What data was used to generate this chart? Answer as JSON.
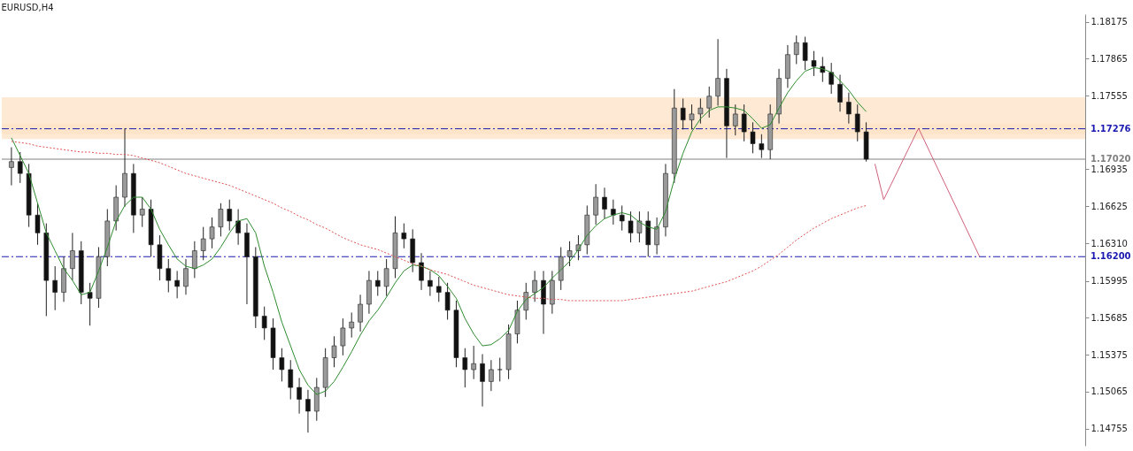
{
  "chart_data": {
    "type": "candlestick",
    "title": "EURUSD,H4",
    "tick_labels": "y",
    "grid": false,
    "categories": [
      null,
      null,
      null,
      null,
      null,
      null,
      null,
      null,
      null,
      null,
      null,
      null,
      null,
      null,
      null,
      null,
      null,
      null,
      null,
      null,
      null,
      null,
      null,
      null,
      null,
      null,
      null,
      null,
      null,
      null,
      null,
      null,
      null,
      null,
      null,
      null,
      null,
      null,
      null,
      null,
      null,
      null,
      null,
      null,
      null,
      null,
      null,
      null,
      null,
      null,
      null,
      null,
      null,
      null,
      null,
      null,
      null,
      null,
      null,
      null,
      null,
      null,
      null,
      null,
      null,
      null,
      null,
      null,
      null,
      null,
      null,
      null,
      null,
      null,
      null,
      null,
      null,
      null,
      null,
      null,
      null,
      null,
      null,
      null,
      null,
      null,
      null,
      null,
      null,
      null,
      null,
      null,
      null,
      null,
      null,
      null,
      null,
      null,
      null,
      null,
      null,
      null,
      null,
      null,
      null,
      null,
      null,
      null,
      null,
      null,
      null,
      null,
      null,
      null,
      null,
      null,
      null,
      null,
      null,
      null,
      null,
      null,
      null
    ],
    "ylim": [
      1.1461,
      1.1824
    ],
    "yticks": [
      1.18175,
      1.17865,
      1.17555,
      1.16935,
      1.16625,
      {
        "value": 1.1631,
        "label": "1.16310"
      },
      1.15995,
      1.15685,
      1.15375,
      1.15065,
      1.14755
    ],
    "ohlc": [
      [
        1.1695,
        1.1712,
        1.168,
        1.17
      ],
      [
        1.17,
        1.1708,
        1.1682,
        1.169
      ],
      [
        1.169,
        1.1698,
        1.1645,
        1.1655
      ],
      [
        1.1655,
        1.1665,
        1.163,
        1.164
      ],
      [
        1.164,
        1.1648,
        1.157,
        1.16
      ],
      [
        1.16,
        1.1612,
        1.1575,
        1.159
      ],
      [
        1.159,
        1.162,
        1.1582,
        1.161
      ],
      [
        1.161,
        1.164,
        1.16,
        1.1625
      ],
      [
        1.1625,
        1.1633,
        1.158,
        1.159
      ],
      [
        1.159,
        1.1598,
        1.1562,
        1.1585
      ],
      [
        1.1585,
        1.1628,
        1.1577,
        1.162
      ],
      [
        1.162,
        1.166,
        1.1612,
        1.165
      ],
      [
        1.165,
        1.168,
        1.1642,
        1.167
      ],
      [
        1.167,
        1.1728,
        1.1662,
        1.169
      ],
      [
        1.169,
        1.1698,
        1.164,
        1.1655
      ],
      [
        1.1655,
        1.167,
        1.1645,
        1.166
      ],
      [
        1.166,
        1.1668,
        1.162,
        1.163
      ],
      [
        1.163,
        1.1638,
        1.16,
        1.161
      ],
      [
        1.161,
        1.1618,
        1.159,
        1.16
      ],
      [
        1.16,
        1.1608,
        1.1585,
        1.1595
      ],
      [
        1.1595,
        1.1618,
        1.1588,
        1.161
      ],
      [
        1.161,
        1.1633,
        1.1602,
        1.1625
      ],
      [
        1.1625,
        1.1645,
        1.1617,
        1.1635
      ],
      [
        1.1635,
        1.1653,
        1.1627,
        1.1645
      ],
      [
        1.1645,
        1.1665,
        1.1637,
        1.166
      ],
      [
        1.166,
        1.1668,
        1.1642,
        1.165
      ],
      [
        1.165,
        1.166,
        1.163,
        1.164
      ],
      [
        1.164,
        1.1648,
        1.158,
        1.162
      ],
      [
        1.162,
        1.1628,
        1.156,
        1.157
      ],
      [
        1.157,
        1.1578,
        1.155,
        1.156
      ],
      [
        1.156,
        1.1568,
        1.1525,
        1.1535
      ],
      [
        1.1535,
        1.1543,
        1.1515,
        1.1525
      ],
      [
        1.1525,
        1.1533,
        1.15,
        1.151
      ],
      [
        1.151,
        1.1518,
        1.1488,
        1.15
      ],
      [
        1.15,
        1.1508,
        1.1472,
        1.149
      ],
      [
        1.149,
        1.1518,
        1.1482,
        1.151
      ],
      [
        1.151,
        1.1543,
        1.1502,
        1.1535
      ],
      [
        1.1535,
        1.1553,
        1.1527,
        1.1545
      ],
      [
        1.1545,
        1.1568,
        1.1537,
        1.156
      ],
      [
        1.156,
        1.1573,
        1.1552,
        1.1565
      ],
      [
        1.1565,
        1.1588,
        1.1557,
        1.158
      ],
      [
        1.158,
        1.1608,
        1.1572,
        1.16
      ],
      [
        1.16,
        1.1608,
        1.1587,
        1.1595
      ],
      [
        1.1595,
        1.1618,
        1.1587,
        1.161
      ],
      [
        1.161,
        1.1654,
        1.1602,
        1.164
      ],
      [
        1.164,
        1.1648,
        1.1627,
        1.1635
      ],
      [
        1.1635,
        1.1643,
        1.1607,
        1.1615
      ],
      [
        1.1615,
        1.1623,
        1.1592,
        1.16
      ],
      [
        1.16,
        1.1608,
        1.1587,
        1.1595
      ],
      [
        1.1595,
        1.1603,
        1.1582,
        1.159
      ],
      [
        1.159,
        1.1598,
        1.1567,
        1.1575
      ],
      [
        1.1575,
        1.1583,
        1.1527,
        1.1535
      ],
      [
        1.1535,
        1.1543,
        1.151,
        1.1525
      ],
      [
        1.1525,
        1.1545,
        1.1517,
        1.153
      ],
      [
        1.153,
        1.1538,
        1.1494,
        1.1515
      ],
      [
        1.1515,
        1.1533,
        1.1507,
        1.1525
      ],
      [
        1.1525,
        1.1535,
        1.1515,
        1.1525
      ],
      [
        1.1525,
        1.1563,
        1.1517,
        1.1555
      ],
      [
        1.1555,
        1.1583,
        1.1547,
        1.1575
      ],
      [
        1.1575,
        1.1598,
        1.1567,
        1.159
      ],
      [
        1.159,
        1.1608,
        1.1582,
        1.16
      ],
      [
        1.16,
        1.1608,
        1.1555,
        1.158
      ],
      [
        1.158,
        1.1608,
        1.1572,
        1.16
      ],
      [
        1.16,
        1.1628,
        1.1592,
        1.162
      ],
      [
        1.162,
        1.1633,
        1.1612,
        1.1625
      ],
      [
        1.1625,
        1.1638,
        1.1617,
        1.163
      ],
      [
        1.163,
        1.1663,
        1.1622,
        1.1655
      ],
      [
        1.1655,
        1.1681,
        1.1647,
        1.167
      ],
      [
        1.167,
        1.1678,
        1.1652,
        1.166
      ],
      [
        1.166,
        1.1668,
        1.1647,
        1.1655
      ],
      [
        1.1655,
        1.1663,
        1.1642,
        1.165
      ],
      [
        1.165,
        1.1658,
        1.1632,
        1.164
      ],
      [
        1.164,
        1.1658,
        1.1632,
        1.165
      ],
      [
        1.165,
        1.1658,
        1.162,
        1.163
      ],
      [
        1.163,
        1.1653,
        1.1622,
        1.1645
      ],
      [
        1.1645,
        1.1698,
        1.1637,
        1.169
      ],
      [
        1.169,
        1.1761,
        1.1682,
        1.1745
      ],
      [
        1.1745,
        1.1753,
        1.1727,
        1.1735
      ],
      [
        1.1735,
        1.1748,
        1.1727,
        1.174
      ],
      [
        1.174,
        1.1753,
        1.1732,
        1.1745
      ],
      [
        1.1745,
        1.1763,
        1.1737,
        1.1755
      ],
      [
        1.1755,
        1.1803,
        1.1747,
        1.177
      ],
      [
        1.177,
        1.1778,
        1.1703,
        1.173
      ],
      [
        1.173,
        1.1748,
        1.1722,
        1.174
      ],
      [
        1.174,
        1.1748,
        1.1717,
        1.1725
      ],
      [
        1.1725,
        1.1733,
        1.1707,
        1.1715
      ],
      [
        1.1715,
        1.1723,
        1.1703,
        1.171
      ],
      [
        1.171,
        1.1748,
        1.1702,
        1.174
      ],
      [
        1.174,
        1.1778,
        1.1732,
        1.177
      ],
      [
        1.177,
        1.1798,
        1.1762,
        1.179
      ],
      [
        1.179,
        1.1806,
        1.1782,
        1.18
      ],
      [
        1.18,
        1.1805,
        1.1777,
        1.1785
      ],
      [
        1.1785,
        1.1793,
        1.1772,
        1.178
      ],
      [
        1.178,
        1.1788,
        1.1767,
        1.1775
      ],
      [
        1.1775,
        1.1783,
        1.1757,
        1.1765
      ],
      [
        1.1765,
        1.1773,
        1.1742,
        1.175
      ],
      [
        1.175,
        1.1758,
        1.1732,
        1.174
      ],
      [
        1.174,
        1.1748,
        1.1717,
        1.1725
      ],
      [
        1.1725,
        1.1733,
        1.17,
        1.1702
      ],
      null,
      null,
      null,
      null,
      null,
      null,
      null,
      null,
      null,
      null,
      null,
      null,
      null,
      null,
      null,
      null,
      null,
      null,
      null,
      null,
      null,
      null,
      null,
      null
    ],
    "series": [
      {
        "type": "line",
        "color": "#2e8b2e",
        "line_style": "solid",
        "values": [
          1.172,
          1.1705,
          1.169,
          1.1665,
          1.164,
          1.1625,
          1.161,
          1.16,
          1.1588,
          1.159,
          1.1608,
          1.1628,
          1.165,
          1.1663,
          1.167,
          1.167,
          1.166,
          1.1643,
          1.163,
          1.1618,
          1.1612,
          1.161,
          1.1613,
          1.1618,
          1.1628,
          1.164,
          1.165,
          1.1652,
          1.164,
          1.1612,
          1.159,
          1.1565,
          1.1545,
          1.1525,
          1.1512,
          1.1504,
          1.1507,
          1.1515,
          1.1527,
          1.154,
          1.1554,
          1.1566,
          1.1575,
          1.1586,
          1.1598,
          1.1608,
          1.1613,
          1.1612,
          1.1609,
          1.1604,
          1.1595,
          1.1585,
          1.1568,
          1.1555,
          1.1545,
          1.1546,
          1.1551,
          1.1558,
          1.1574,
          1.1584,
          1.1589,
          1.1594,
          1.1602,
          1.1609,
          1.1616,
          1.1626,
          1.1638,
          1.1646,
          1.1652,
          1.1655,
          1.1657,
          1.1655,
          1.1649,
          1.1645,
          1.1643,
          1.1658,
          1.1685,
          1.1707,
          1.1725,
          1.1736,
          1.1743,
          1.1746,
          1.1746,
          1.1745,
          1.1743,
          1.1736,
          1.1728,
          1.1731,
          1.1745,
          1.1758,
          1.1768,
          1.1776,
          1.1779,
          1.1778,
          1.1775,
          1.1768,
          1.176,
          1.175,
          1.1742,
          null,
          null,
          null,
          null,
          null,
          null,
          null,
          null,
          null,
          null,
          null,
          null,
          null,
          null,
          null,
          null,
          null,
          null,
          null,
          null,
          null,
          null,
          null,
          null
        ]
      },
      {
        "type": "line",
        "color": "#e05050",
        "line_style": "dotted",
        "values": [
          1.1717,
          1.1716,
          1.1715,
          1.1713,
          1.1712,
          1.1711,
          1.171,
          1.1709,
          1.1708,
          1.1708,
          1.1707,
          1.1707,
          1.1706,
          1.1706,
          1.1705,
          1.1703,
          1.1701,
          1.1699,
          1.1696,
          1.1693,
          1.169,
          1.1688,
          1.1686,
          1.1684,
          1.1682,
          1.168,
          1.1677,
          1.1674,
          1.1671,
          1.1668,
          1.1665,
          1.1661,
          1.1658,
          1.1654,
          1.1651,
          1.1647,
          1.1644,
          1.164,
          1.1636,
          1.1633,
          1.163,
          1.1628,
          1.1626,
          1.1623,
          1.162,
          1.1617,
          1.1614,
          1.1612,
          1.1609,
          1.1607,
          1.1605,
          1.1602,
          1.1599,
          1.1596,
          1.1594,
          1.1592,
          1.159,
          1.1588,
          1.1587,
          1.1586,
          1.1585,
          1.1585,
          1.1584,
          1.1584,
          1.1583,
          1.1583,
          1.1583,
          1.1583,
          1.1583,
          1.1583,
          1.1583,
          1.1584,
          1.1585,
          1.1586,
          1.1587,
          1.1588,
          1.1589,
          1.159,
          1.1591,
          1.1593,
          1.1595,
          1.1597,
          1.1599,
          1.1602,
          1.1605,
          1.1608,
          1.1612,
          1.1617,
          1.1622,
          1.1628,
          1.1634,
          1.1639,
          1.1644,
          1.1648,
          1.1652,
          1.1655,
          1.1658,
          1.1661,
          1.1663,
          null,
          null,
          null,
          null,
          null,
          null,
          null,
          null,
          null,
          null,
          null,
          null,
          null,
          null,
          null,
          null,
          null,
          null,
          null,
          null,
          null,
          null,
          null,
          null
        ]
      },
      {
        "type": "line",
        "color": "#d0607a",
        "line_style": "solid",
        "values": [
          null,
          null,
          null,
          null,
          null,
          null,
          null,
          null,
          null,
          null,
          null,
          null,
          null,
          null,
          null,
          null,
          null,
          null,
          null,
          null,
          null,
          null,
          null,
          null,
          null,
          null,
          null,
          null,
          null,
          null,
          null,
          null,
          null,
          null,
          null,
          null,
          null,
          null,
          null,
          null,
          null,
          null,
          null,
          null,
          null,
          null,
          null,
          null,
          null,
          null,
          null,
          null,
          null,
          null,
          null,
          null,
          null,
          null,
          null,
          null,
          null,
          null,
          null,
          null,
          null,
          null,
          null,
          null,
          null,
          null,
          null,
          null,
          null,
          null,
          null,
          null,
          null,
          null,
          null,
          null,
          null,
          null,
          null,
          null,
          null,
          null,
          null,
          null,
          null,
          null,
          null,
          null,
          null,
          null,
          null,
          null,
          null,
          null,
          null,
          1.1698,
          1.1668,
          null,
          null,
          null,
          1.1728,
          null,
          null,
          null,
          null,
          null,
          null,
          1.162,
          null,
          null,
          null,
          null,
          null,
          null,
          null,
          null,
          null,
          null,
          null
        ]
      }
    ],
    "ref_lines": [
      {
        "axis": "y",
        "value": 1.17276,
        "label": "1.17276",
        "color": "#1a1ab0",
        "line_style": "dashed"
      },
      {
        "axis": "y",
        "value": 1.1702,
        "label": "1.17020",
        "color": "#808080",
        "line_style": "solid"
      },
      {
        "axis": "y",
        "value": 1.162,
        "label": "1.16200",
        "color": "#1a1ab0",
        "line_style": "dashed"
      }
    ],
    "bands": [
      {
        "axis": "y",
        "from": 1.1723,
        "to": 1.1732,
        "color": "#fde3c6"
      },
      {
        "axis": "y",
        "from": 1.1719,
        "to": 1.1754,
        "color": "#fde3c6"
      }
    ]
  }
}
